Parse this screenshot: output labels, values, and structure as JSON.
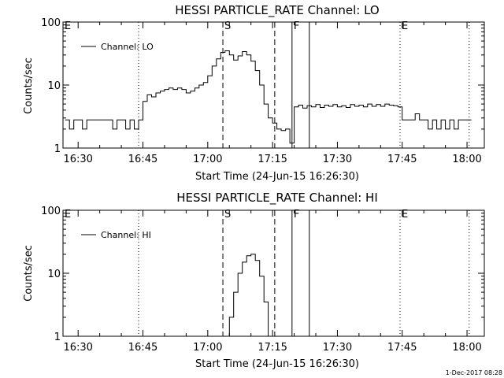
{
  "footer": {
    "date_stamp": "1-Dec-2017 08:28"
  },
  "chart_data": [
    {
      "type": "line",
      "title": "HESSI PARTICLE_RATE Channel: LO",
      "xlabel": "Start Time (24-Jun-15 16:26:30)",
      "ylabel": "Counts/sec",
      "yscale": "log",
      "xlim": [
        "16:26:30",
        "18:04:00"
      ],
      "ylim": [
        1,
        100
      ],
      "x_tick_labels": [
        "16:30",
        "16:45",
        "17:00",
        "17:15",
        "17:30",
        "17:45",
        "18:00"
      ],
      "y_tick_labels": [
        "1",
        "10",
        "100"
      ],
      "legend": {
        "position": "top-left",
        "entries": [
          "Channel: LO"
        ]
      },
      "event_markers": [
        {
          "label": "E",
          "time": "16:26:30",
          "style": "dotted"
        },
        {
          "label": "",
          "time": "16:44:00",
          "style": "dotted"
        },
        {
          "label": "S",
          "time": "17:03:30",
          "style": "dashed"
        },
        {
          "label": "",
          "time": "17:15:30",
          "style": "dashed"
        },
        {
          "label": "F",
          "time": "17:19:30",
          "style": "solid"
        },
        {
          "label": "",
          "time": "17:23:30",
          "style": "solid"
        },
        {
          "label": "E",
          "time": "17:44:30",
          "style": "dotted"
        },
        {
          "label": "",
          "time": "18:00:30",
          "style": "dotted"
        }
      ],
      "series": [
        {
          "name": "Channel: LO",
          "points": [
            [
              "16:27",
              2.8
            ],
            [
              "16:28",
              2.0
            ],
            [
              "16:29",
              2.8
            ],
            [
              "16:30",
              2.8
            ],
            [
              "16:31",
              2.0
            ],
            [
              "16:32",
              2.8
            ],
            [
              "16:33",
              2.8
            ],
            [
              "16:34",
              2.8
            ],
            [
              "16:35",
              2.8
            ],
            [
              "16:36",
              2.8
            ],
            [
              "16:37",
              2.8
            ],
            [
              "16:38",
              2.0
            ],
            [
              "16:39",
              2.8
            ],
            [
              "16:40",
              2.8
            ],
            [
              "16:41",
              2.0
            ],
            [
              "16:42",
              2.8
            ],
            [
              "16:43",
              2.0
            ],
            [
              "16:44",
              2.8
            ],
            [
              "16:45",
              5.5
            ],
            [
              "16:46",
              7.0
            ],
            [
              "16:47",
              6.5
            ],
            [
              "16:48",
              7.5
            ],
            [
              "16:49",
              8.0
            ],
            [
              "16:50",
              8.5
            ],
            [
              "16:51",
              9.0
            ],
            [
              "16:52",
              8.5
            ],
            [
              "16:53",
              9.0
            ],
            [
              "16:54",
              8.5
            ],
            [
              "16:55",
              7.5
            ],
            [
              "16:56",
              8.0
            ],
            [
              "16:57",
              9.0
            ],
            [
              "16:58",
              10.0
            ],
            [
              "16:59",
              11.0
            ],
            [
              "17:00",
              14.0
            ],
            [
              "17:01",
              20.0
            ],
            [
              "17:02",
              26.0
            ],
            [
              "17:03",
              33.0
            ],
            [
              "17:04",
              35.0
            ],
            [
              "17:05",
              30.0
            ],
            [
              "17:06",
              25.0
            ],
            [
              "17:07",
              29.0
            ],
            [
              "17:08",
              34.0
            ],
            [
              "17:09",
              30.0
            ],
            [
              "17:10",
              24.0
            ],
            [
              "17:11",
              17.0
            ],
            [
              "17:12",
              10.0
            ],
            [
              "17:13",
              5.0
            ],
            [
              "17:14",
              3.0
            ],
            [
              "17:15",
              2.5
            ],
            [
              "17:16",
              2.0
            ],
            [
              "17:17",
              1.9
            ],
            [
              "17:18",
              2.0
            ],
            [
              "17:19",
              1.2
            ],
            [
              "17:20",
              4.5
            ],
            [
              "17:21",
              4.8
            ],
            [
              "17:22",
              4.3
            ],
            [
              "17:23",
              4.7
            ],
            [
              "17:24",
              4.5
            ],
            [
              "17:25",
              4.9
            ],
            [
              "17:26",
              4.4
            ],
            [
              "17:27",
              4.8
            ],
            [
              "17:28",
              4.6
            ],
            [
              "17:29",
              4.9
            ],
            [
              "17:30",
              4.5
            ],
            [
              "17:31",
              4.7
            ],
            [
              "17:32",
              4.4
            ],
            [
              "17:33",
              4.9
            ],
            [
              "17:34",
              4.6
            ],
            [
              "17:35",
              4.8
            ],
            [
              "17:36",
              4.5
            ],
            [
              "17:37",
              5.0
            ],
            [
              "17:38",
              4.6
            ],
            [
              "17:39",
              4.9
            ],
            [
              "17:40",
              4.6
            ],
            [
              "17:41",
              5.0
            ],
            [
              "17:42",
              4.8
            ],
            [
              "17:43",
              4.7
            ],
            [
              "17:44",
              4.5
            ],
            [
              "17:45",
              2.8
            ],
            [
              "17:46",
              2.8
            ],
            [
              "17:47",
              2.8
            ],
            [
              "17:48",
              3.5
            ],
            [
              "17:49",
              2.8
            ],
            [
              "17:50",
              2.8
            ],
            [
              "17:51",
              2.0
            ],
            [
              "17:52",
              2.8
            ],
            [
              "17:53",
              2.0
            ],
            [
              "17:54",
              2.8
            ],
            [
              "17:55",
              2.0
            ],
            [
              "17:56",
              2.8
            ],
            [
              "17:57",
              2.0
            ],
            [
              "17:58",
              2.8
            ],
            [
              "17:59",
              2.8
            ],
            [
              "18:00",
              2.8
            ]
          ]
        }
      ]
    },
    {
      "type": "line",
      "title": "HESSI PARTICLE_RATE Channel: HI",
      "xlabel": "Start Time (24-Jun-15 16:26:30)",
      "ylabel": "Counts/sec",
      "yscale": "log",
      "xlim": [
        "16:26:30",
        "18:04:00"
      ],
      "ylim": [
        1,
        100
      ],
      "x_tick_labels": [
        "16:30",
        "16:45",
        "17:00",
        "17:15",
        "17:30",
        "17:45",
        "18:00"
      ],
      "y_tick_labels": [
        "1",
        "10",
        "100"
      ],
      "legend": {
        "position": "top-left",
        "entries": [
          "Channel: HI"
        ]
      },
      "event_markers": [
        {
          "label": "E",
          "time": "16:26:30",
          "style": "dotted"
        },
        {
          "label": "",
          "time": "16:44:00",
          "style": "dotted"
        },
        {
          "label": "S",
          "time": "17:03:30",
          "style": "dashed"
        },
        {
          "label": "",
          "time": "17:15:30",
          "style": "dashed"
        },
        {
          "label": "F",
          "time": "17:19:30",
          "style": "solid"
        },
        {
          "label": "",
          "time": "17:23:30",
          "style": "solid"
        },
        {
          "label": "E",
          "time": "17:44:30",
          "style": "dotted"
        },
        {
          "label": "",
          "time": "18:00:30",
          "style": "dotted"
        }
      ],
      "series": [
        {
          "name": "Channel: HI",
          "points": [
            [
              "17:04",
              1.0
            ],
            [
              "17:05",
              2.0
            ],
            [
              "17:06",
              5.0
            ],
            [
              "17:07",
              10.0
            ],
            [
              "17:08",
              15.0
            ],
            [
              "17:09",
              19.0
            ],
            [
              "17:10",
              20.0
            ],
            [
              "17:11",
              16.0
            ],
            [
              "17:12",
              9.0
            ],
            [
              "17:13",
              3.5
            ],
            [
              "17:14",
              1.0
            ]
          ]
        }
      ]
    }
  ]
}
